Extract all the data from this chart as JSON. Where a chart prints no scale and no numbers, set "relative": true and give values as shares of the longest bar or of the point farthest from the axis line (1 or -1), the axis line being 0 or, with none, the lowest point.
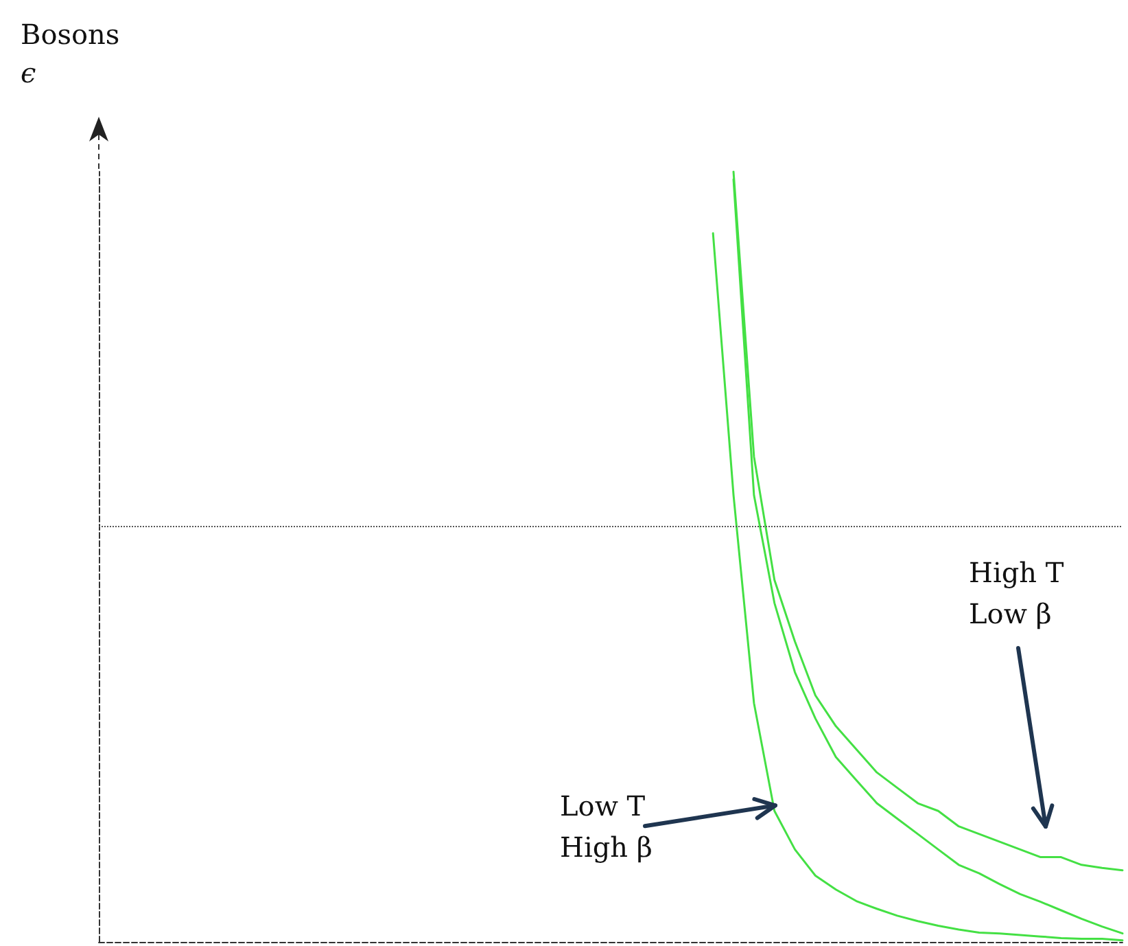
{
  "chart_data": {
    "type": "line",
    "title": "Bosons",
    "ylabel": "ϵ",
    "relative": true,
    "tick_labels": false,
    "categories": [
      null,
      null,
      null,
      null,
      null,
      null,
      null,
      null,
      null,
      null,
      null,
      null,
      null,
      null,
      null,
      null,
      null,
      null,
      null,
      null,
      null,
      null,
      null,
      null,
      null,
      null,
      null,
      null,
      null,
      null,
      null,
      null,
      null,
      null,
      null,
      null,
      null,
      null,
      null,
      null,
      null,
      null,
      null,
      null,
      null,
      null,
      null,
      null,
      null,
      null,
      null
    ],
    "series": [
      {
        "color": "#44e044",
        "values": [
          null,
          null,
          null,
          null,
          null,
          null,
          null,
          null,
          null,
          null,
          null,
          null,
          null,
          null,
          null,
          null,
          null,
          null,
          null,
          null,
          null,
          null,
          null,
          null,
          null,
          null,
          null,
          null,
          null,
          null,
          0.92,
          0.58,
          0.31,
          0.17,
          0.12,
          0.086,
          0.068,
          0.053,
          0.043,
          0.034,
          0.027,
          0.021,
          0.016,
          0.012,
          0.011,
          0.009,
          0.007,
          0.005,
          0.004,
          0.004,
          0.002
        ]
      },
      {
        "color": "#44e044",
        "values": [
          null,
          null,
          null,
          null,
          null,
          null,
          null,
          null,
          null,
          null,
          null,
          null,
          null,
          null,
          null,
          null,
          null,
          null,
          null,
          null,
          null,
          null,
          null,
          null,
          null,
          null,
          null,
          null,
          null,
          null,
          null,
          0.99,
          0.58,
          0.44,
          0.35,
          0.29,
          0.24,
          0.21,
          0.18,
          0.16,
          0.14,
          0.12,
          0.1,
          0.089,
          0.075,
          0.062,
          0.052,
          0.041,
          0.03,
          0.02,
          0.011
        ]
      },
      {
        "color": "#44e044",
        "values": [
          null,
          null,
          null,
          null,
          null,
          null,
          null,
          null,
          null,
          null,
          null,
          null,
          null,
          null,
          null,
          null,
          null,
          null,
          null,
          null,
          null,
          null,
          null,
          null,
          null,
          null,
          null,
          null,
          null,
          null,
          null,
          1,
          0.63,
          0.47,
          0.39,
          0.32,
          0.28,
          0.25,
          0.22,
          0.2,
          0.18,
          0.17,
          0.15,
          0.14,
          0.13,
          0.12,
          0.11,
          0.11,
          0.1,
          0.096,
          0.093
        ]
      }
    ],
    "ref_lines": [
      {
        "axis": "y",
        "value": 0.54,
        "color": "#555555",
        "line_style": "dotted"
      }
    ],
    "annotations": [
      "Low T\nHigh β",
      "High T\nLow β"
    ]
  }
}
